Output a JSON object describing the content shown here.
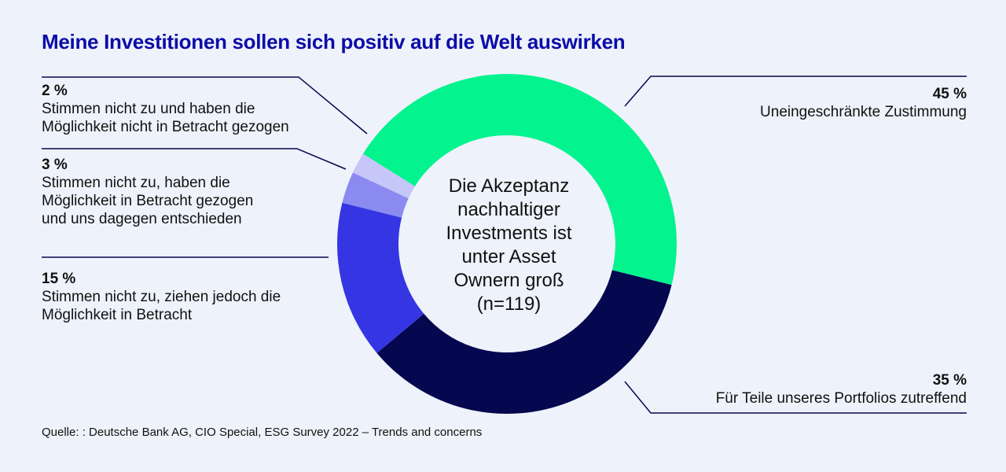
{
  "title": "Meine Investitionen sollen sich positiv auf die Welt auswirken",
  "source": "Quelle: : Deutsche Bank AG, CIO Special, ESG Survey 2022 – Trends and concerns",
  "chart_data": {
    "type": "pie",
    "variant": "donut",
    "title": "Meine Investitionen sollen sich positiv auf die Welt auswirken",
    "center_text": "Die Akzeptanz\nnachhaltiger\nInvestments ist\nunter Asset\nOwnern groß\n(n=119)",
    "unit": "%",
    "slices": [
      {
        "name": "Uneingeschränkte Zustimmung",
        "value": 45,
        "label": "45 %",
        "color": "#03f38f"
      },
      {
        "name": "Für Teile unseres Portfolios zutreffend",
        "value": 35,
        "label": "35 %",
        "color": "#05074f"
      },
      {
        "name": "Stimmen nicht zu, ziehen  jedoch die\nMöglichkeit in Betracht",
        "value": 15,
        "label": "15 %",
        "color": "#3535e3"
      },
      {
        "name": "Stimmen nicht zu, haben die\nMöglichkeit in Betracht gezogen\nund uns dagegen entschieden",
        "value": 3,
        "label": "3 %",
        "color": "#8a8af0"
      },
      {
        "name": "Stimmen nicht zu und haben die\nMöglichkeit nicht in Betracht gezogen",
        "value": 2,
        "label": "2 %",
        "color": "#c6c6f8"
      }
    ],
    "line_color": "#05074f"
  }
}
